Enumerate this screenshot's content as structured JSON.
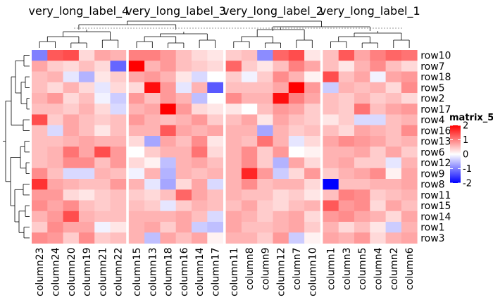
{
  "chart_data": {
    "type": "heatmap",
    "title": "",
    "legend": {
      "title": "matrix_5",
      "placement": "right",
      "ticks": [
        2,
        1,
        0,
        -1,
        -2
      ],
      "tick_labels": [
        "2",
        "1",
        "0",
        "-1",
        "-2"
      ],
      "color_low": "#0000ff",
      "color_mid": "#ffffff",
      "color_high": "#ff0000"
    },
    "value_range": [
      -2,
      2
    ],
    "row_labels": [
      "row10",
      "row7",
      "row18",
      "row5",
      "row2",
      "row17",
      "row4",
      "row16",
      "row13",
      "row6",
      "row12",
      "row9",
      "row8",
      "row11",
      "row15",
      "row14",
      "row1",
      "row3"
    ],
    "column_groups": [
      {
        "label": "very_long_label_4",
        "columns": [
          "column23",
          "column24",
          "column20",
          "column19",
          "column21",
          "column22"
        ]
      },
      {
        "label": "very_long_label_3",
        "columns": [
          "column15",
          "column13",
          "column18",
          "column16",
          "column14",
          "column17"
        ]
      },
      {
        "label": "very_long_label_2",
        "columns": [
          "column11",
          "column8",
          "column9",
          "column12",
          "column7",
          "column10"
        ]
      },
      {
        "label": "very_long_label_1",
        "columns": [
          "column1",
          "column3",
          "column5",
          "column4",
          "column2",
          "column6"
        ]
      }
    ],
    "values": [
      [
        -1.0,
        1.3,
        1.4,
        0.3,
        0.7,
        0.6,
        1.0,
        1.0,
        0.8,
        0.5,
        0.3,
        0.2,
        0.4,
        0.5,
        -0.9,
        1.2,
        1.4,
        0.2,
        0.5,
        1.3,
        0.7,
        1.0,
        1.2,
        1.1
      ],
      [
        0.7,
        0.4,
        0.3,
        0.5,
        0.3,
        -1.2,
        2.0,
        0.6,
        0.8,
        0.5,
        0.4,
        0.3,
        1.2,
        0.4,
        0.2,
        0.5,
        1.0,
        0.7,
        0.5,
        0.2,
        0.6,
        0.9,
        0.5,
        0.3
      ],
      [
        0.5,
        0.6,
        -0.2,
        -0.6,
        0.2,
        0.4,
        0.7,
        0.8,
        0.6,
        0.2,
        -0.3,
        0.0,
        0.4,
        -0.1,
        0.4,
        0.9,
        0.6,
        0.1,
        1.4,
        0.5,
        0.7,
        -0.1,
        0.7,
        0.8
      ],
      [
        0.5,
        0.3,
        0.6,
        0.3,
        -0.2,
        0.3,
        0.3,
        1.9,
        0.8,
        -0.2,
        0.6,
        -1.3,
        0.5,
        0.5,
        0.5,
        0.7,
        2.0,
        0.8,
        -0.4,
        0.6,
        0.5,
        0.6,
        0.3,
        0.9
      ],
      [
        0.6,
        0.8,
        0.3,
        0.5,
        -0.1,
        -0.4,
        0.8,
        0.5,
        0.8,
        0.6,
        -0.5,
        0.0,
        0.9,
        0.6,
        0.6,
        1.9,
        1.0,
        0.7,
        0.5,
        0.4,
        0.6,
        0.4,
        0.5,
        0.3
      ],
      [
        0.5,
        0.5,
        0.4,
        0.6,
        0.3,
        -0.3,
        0.6,
        0.7,
        2.0,
        0.8,
        0.3,
        0.2,
        0.2,
        0.0,
        0.5,
        0.8,
        0.7,
        0.4,
        0.5,
        0.4,
        1.1,
        0.5,
        0.7,
        0.8
      ],
      [
        1.4,
        0.4,
        0.7,
        0.5,
        0.4,
        0.5,
        0.8,
        0.6,
        0.5,
        0.6,
        0.8,
        0.4,
        0.5,
        0.7,
        0.2,
        0.7,
        0.5,
        0.4,
        0.2,
        0.4,
        -0.3,
        -0.3,
        0.5,
        0.6
      ],
      [
        0.5,
        -0.3,
        0.7,
        0.5,
        0.2,
        0.5,
        0.6,
        0.6,
        1.3,
        0.7,
        0.6,
        0.7,
        0.6,
        0.6,
        -0.7,
        0.6,
        0.4,
        0.5,
        0.5,
        0.3,
        0.7,
        0.6,
        0.5,
        0.9
      ],
      [
        0.5,
        0.5,
        0.6,
        0.7,
        0.6,
        0.6,
        0.3,
        -0.7,
        0.7,
        0.5,
        0.9,
        0.2,
        0.6,
        0.5,
        1.1,
        0.6,
        -0.2,
        0.3,
        0.7,
        0.9,
        0.8,
        0.7,
        0.5,
        0.6
      ],
      [
        0.5,
        0.6,
        1.1,
        0.7,
        1.4,
        0.8,
        0.0,
        0.4,
        0.6,
        0.6,
        1.1,
        0.3,
        0.6,
        0.9,
        0.4,
        0.8,
        0.0,
        0.1,
        0.6,
        0.6,
        0.7,
        0.4,
        0.7,
        0.4
      ],
      [
        0.5,
        0.6,
        0.9,
        0.9,
        0.5,
        0.8,
        0.3,
        0.1,
        -0.5,
        0.6,
        0.7,
        0.5,
        0.6,
        0.9,
        0.4,
        -0.6,
        0.7,
        0.3,
        0.6,
        0.7,
        0.4,
        0.4,
        -0.2,
        0.6
      ],
      [
        0.9,
        0.5,
        -0.3,
        -0.3,
        0.6,
        0.5,
        -0.1,
        0.6,
        -0.6,
        0.6,
        0.5,
        0.6,
        0.6,
        1.7,
        0.8,
        -0.4,
        0.3,
        0.8,
        0.4,
        0.6,
        0.7,
        0.9,
        0.1,
        0.7
      ],
      [
        1.6,
        0.7,
        0.6,
        0.5,
        0.5,
        0.8,
        0.6,
        -0.2,
        -0.7,
        0.3,
        0.7,
        -0.3,
        0.6,
        0.9,
        0.5,
        0.6,
        0.6,
        0.3,
        -2.0,
        0.5,
        0.5,
        0.6,
        0.6,
        0.7
      ],
      [
        0.8,
        0.8,
        0.3,
        0.2,
        0.4,
        0.5,
        0.4,
        0.3,
        0.5,
        1.2,
        0.7,
        0.5,
        0.6,
        0.5,
        0.5,
        0.3,
        0.4,
        0.2,
        0.5,
        1.0,
        0.9,
        0.4,
        0.5,
        0.6
      ],
      [
        0.9,
        0.7,
        0.9,
        0.5,
        0.4,
        0.5,
        0.5,
        0.4,
        -0.2,
        0.4,
        0.6,
        0.5,
        0.5,
        0.7,
        0.4,
        0.3,
        0.5,
        0.6,
        1.3,
        0.8,
        0.9,
        0.3,
        0.7,
        0.5
      ],
      [
        0.6,
        0.8,
        1.4,
        0.6,
        0.5,
        0.5,
        0.6,
        0.6,
        0.6,
        0.7,
        0.5,
        -0.3,
        0.7,
        0.6,
        0.4,
        0.6,
        0.7,
        0.3,
        0.8,
        0.9,
        0.7,
        0.6,
        0.3,
        0.7
      ],
      [
        0.4,
        0.9,
        0.7,
        0.7,
        -0.1,
        0.2,
        0.6,
        0.7,
        0.4,
        0.7,
        -0.4,
        -0.5,
        0.7,
        0.5,
        0.5,
        0.6,
        0.7,
        0.4,
        0.6,
        0.3,
        0.5,
        0.2,
        -0.4,
        0.6
      ],
      [
        0.9,
        0.8,
        0.4,
        0.9,
        0.4,
        0.5,
        0.6,
        -0.5,
        0.7,
        0.5,
        0.7,
        0.1,
        0.6,
        0.6,
        0.4,
        0.8,
        -0.4,
        0.1,
        0.7,
        0.6,
        0.8,
        0.3,
        0.6,
        0.7
      ]
    ]
  }
}
